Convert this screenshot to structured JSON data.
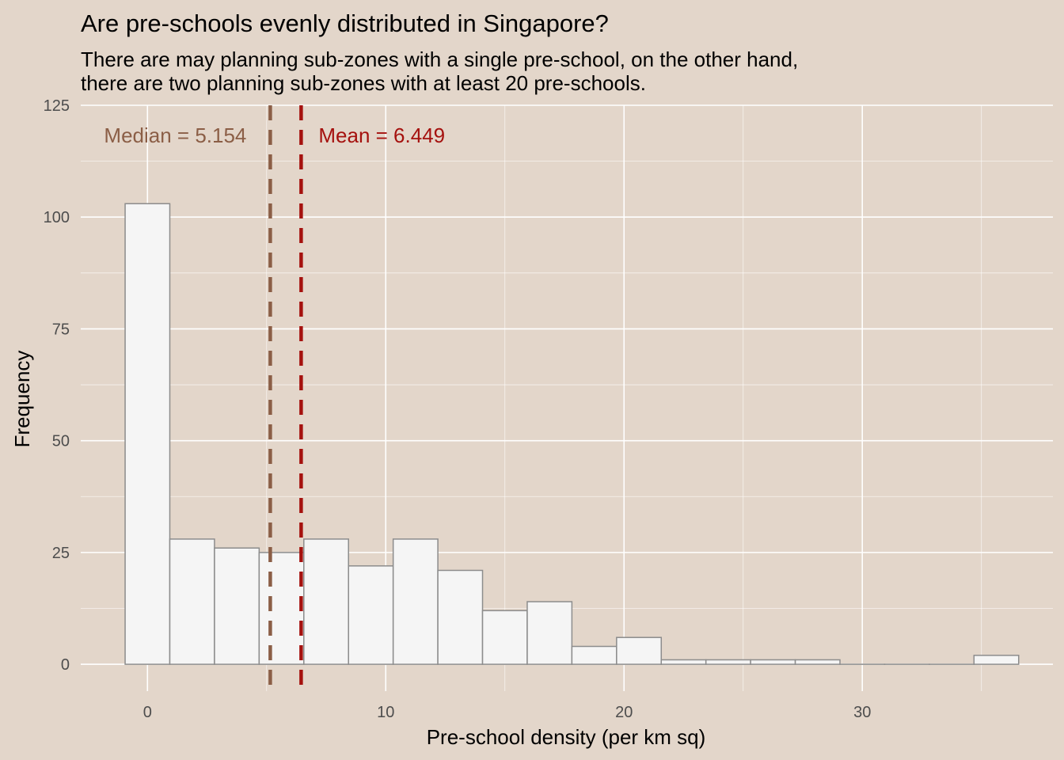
{
  "chart_data": {
    "type": "bar",
    "title": "Are pre-schools evenly distributed in Singapore?",
    "subtitle_lines": [
      "There are may planning sub-zones with a single pre-school, on the other hand,",
      "there are two planning sub-zones with at least 20 pre-schools."
    ],
    "xlabel": "Pre-school density (per km sq)",
    "ylabel": "Frequency",
    "xlim": [
      -2.8,
      38.0
    ],
    "ylim": [
      -6,
      125
    ],
    "x_ticks": [
      0,
      10,
      20,
      30
    ],
    "x_tick_labels": [
      "0",
      "10",
      "20",
      "30"
    ],
    "y_ticks": [
      0,
      25,
      50,
      75,
      100,
      125
    ],
    "y_tick_labels": [
      "0",
      "25",
      "50",
      "75",
      "100",
      "125"
    ],
    "bin_width": 1.875,
    "bin_centers": [
      0,
      1.875,
      3.75,
      5.625,
      7.5,
      9.375,
      11.25,
      13.125,
      15,
      16.875,
      18.75,
      20.625,
      22.5,
      24.375,
      26.25,
      28.125,
      30,
      31.875,
      33.75,
      35.625
    ],
    "values": [
      103,
      28,
      26,
      25,
      28,
      22,
      28,
      21,
      12,
      14,
      4,
      6,
      1,
      1,
      1,
      1,
      0,
      0,
      0,
      2
    ],
    "reference_lines": [
      {
        "label": "Median = 5.154",
        "value": 5.154,
        "color": "#8B5E46",
        "label_side": "left"
      },
      {
        "label": "Mean = 6.449",
        "value": 6.449,
        "color": "#A5110E",
        "label_side": "right"
      }
    ],
    "bar_fill": "#F5F5F5",
    "bar_stroke": "#8C8C8C",
    "background": "#E3D6CA",
    "grid_color": "#FFFFFF",
    "grid": true,
    "legend": "none"
  }
}
